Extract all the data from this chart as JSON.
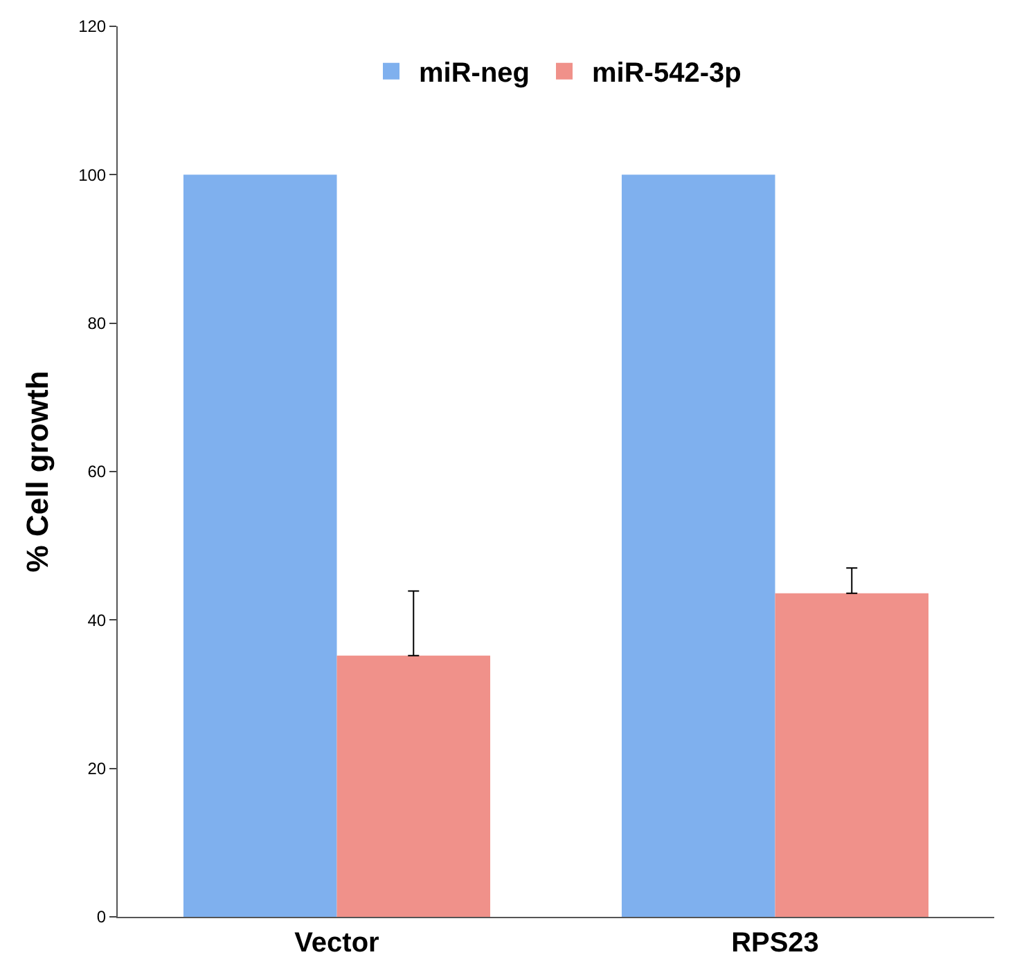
{
  "chart_data": {
    "type": "bar",
    "ylabel": "% Cell growth",
    "categories": [
      "Vector",
      "RPS23"
    ],
    "series": [
      {
        "name": "miR-neg",
        "color": "#7fb0ee",
        "values": [
          100,
          100
        ]
      },
      {
        "name": "miR-542-3p",
        "color": "#f0918a",
        "values": [
          35.2,
          43.6
        ],
        "errors": [
          [
            35.2,
            43.9
          ],
          [
            43.6,
            47.0
          ]
        ]
      }
    ],
    "ylim": [
      0,
      120
    ],
    "yticks": [
      0,
      20,
      40,
      60,
      80,
      100,
      120
    ],
    "legend": "top"
  }
}
